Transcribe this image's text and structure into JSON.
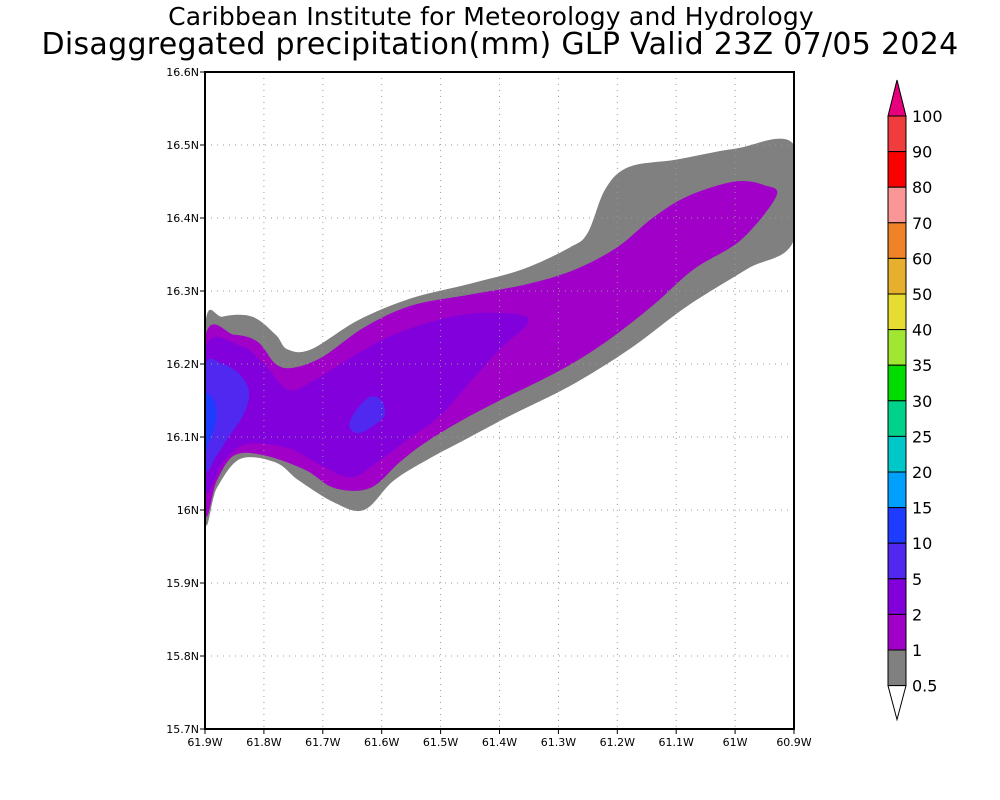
{
  "header": {
    "title": "Caribbean Institute for Meteorology and Hydrology",
    "subtitle": "Disaggregated precipitation(mm) GLP Valid 23Z 07/05 2024"
  },
  "map": {
    "projection": "lat-lon",
    "lon_range": [
      -61.9,
      -60.9
    ],
    "lat_range": [
      15.7,
      16.6
    ],
    "grid": "dotted",
    "lon_ticks": [
      {
        "value": -61.9,
        "label": "61.9W"
      },
      {
        "value": -61.8,
        "label": "61.8W"
      },
      {
        "value": -61.7,
        "label": "61.7W"
      },
      {
        "value": -61.6,
        "label": "61.6W"
      },
      {
        "value": -61.5,
        "label": "61.5W"
      },
      {
        "value": -61.4,
        "label": "61.4W"
      },
      {
        "value": -61.3,
        "label": "61.3W"
      },
      {
        "value": -61.2,
        "label": "61.2W"
      },
      {
        "value": -61.1,
        "label": "61.1W"
      },
      {
        "value": -61.0,
        "label": "61W"
      },
      {
        "value": -60.9,
        "label": "60.9W"
      }
    ],
    "lat_ticks": [
      {
        "value": 15.7,
        "label": "15.7N"
      },
      {
        "value": 15.8,
        "label": "15.8N"
      },
      {
        "value": 15.9,
        "label": "15.9N"
      },
      {
        "value": 16.0,
        "label": "16N"
      },
      {
        "value": 16.1,
        "label": "16.1N"
      },
      {
        "value": 16.2,
        "label": "16.2N"
      },
      {
        "value": 16.3,
        "label": "16.3N"
      },
      {
        "value": 16.4,
        "label": "16.4N"
      },
      {
        "value": 16.5,
        "label": "16.5N"
      },
      {
        "value": 16.6,
        "label": "16.6N"
      }
    ],
    "contours": [
      {
        "level": "0.5-1",
        "color": "#808080",
        "points": [
          [
            -61.9,
            16.25
          ],
          [
            -61.87,
            16.265
          ],
          [
            -61.82,
            16.265
          ],
          [
            -61.78,
            16.24
          ],
          [
            -61.76,
            16.22
          ],
          [
            -61.72,
            16.22
          ],
          [
            -61.64,
            16.26
          ],
          [
            -61.55,
            16.29
          ],
          [
            -61.45,
            16.31
          ],
          [
            -61.36,
            16.33
          ],
          [
            -61.28,
            16.36
          ],
          [
            -61.25,
            16.38
          ],
          [
            -61.22,
            16.44
          ],
          [
            -61.18,
            16.47
          ],
          [
            -61.1,
            16.48
          ],
          [
            -61.0,
            16.495
          ],
          [
            -60.9,
            16.5
          ],
          [
            -60.9,
            16.37
          ],
          [
            -60.98,
            16.33
          ],
          [
            -61.08,
            16.28
          ],
          [
            -61.18,
            16.22
          ],
          [
            -61.28,
            16.17
          ],
          [
            -61.38,
            16.13
          ],
          [
            -61.45,
            16.1
          ],
          [
            -61.52,
            16.07
          ],
          [
            -61.58,
            16.04
          ],
          [
            -61.63,
            16.0
          ],
          [
            -61.68,
            16.01
          ],
          [
            -61.74,
            16.04
          ],
          [
            -61.78,
            16.065
          ],
          [
            -61.84,
            16.07
          ],
          [
            -61.88,
            16.03
          ],
          [
            -61.9,
            15.99
          ]
        ]
      },
      {
        "level": "1-2",
        "color": "#a000c8",
        "points": [
          [
            -61.9,
            16.235
          ],
          [
            -61.85,
            16.24
          ],
          [
            -61.81,
            16.23
          ],
          [
            -61.78,
            16.2
          ],
          [
            -61.75,
            16.195
          ],
          [
            -61.7,
            16.21
          ],
          [
            -61.63,
            16.25
          ],
          [
            -61.55,
            16.28
          ],
          [
            -61.45,
            16.295
          ],
          [
            -61.35,
            16.31
          ],
          [
            -61.27,
            16.33
          ],
          [
            -61.2,
            16.36
          ],
          [
            -61.14,
            16.4
          ],
          [
            -61.08,
            16.43
          ],
          [
            -61.0,
            16.45
          ],
          [
            -60.95,
            16.445
          ],
          [
            -60.93,
            16.43
          ],
          [
            -60.99,
            16.37
          ],
          [
            -61.07,
            16.33
          ],
          [
            -61.14,
            16.28
          ],
          [
            -61.22,
            16.23
          ],
          [
            -61.3,
            16.19
          ],
          [
            -61.4,
            16.15
          ],
          [
            -61.47,
            16.12
          ],
          [
            -61.53,
            16.09
          ],
          [
            -61.57,
            16.065
          ],
          [
            -61.62,
            16.03
          ],
          [
            -61.68,
            16.03
          ],
          [
            -61.73,
            16.055
          ],
          [
            -61.8,
            16.075
          ],
          [
            -61.85,
            16.075
          ],
          [
            -61.88,
            16.04
          ],
          [
            -61.9,
            16.0
          ]
        ]
      },
      {
        "level": "2-5",
        "color": "#8200dc",
        "points": [
          [
            -61.9,
            16.22
          ],
          [
            -61.84,
            16.225
          ],
          [
            -61.8,
            16.2
          ],
          [
            -61.76,
            16.165
          ],
          [
            -61.72,
            16.175
          ],
          [
            -61.66,
            16.205
          ],
          [
            -61.58,
            16.24
          ],
          [
            -61.48,
            16.265
          ],
          [
            -61.4,
            16.27
          ],
          [
            -61.35,
            16.26
          ],
          [
            -61.4,
            16.22
          ],
          [
            -61.45,
            16.175
          ],
          [
            -61.5,
            16.13
          ],
          [
            -61.55,
            16.1
          ],
          [
            -61.6,
            16.07
          ],
          [
            -61.65,
            16.045
          ],
          [
            -61.7,
            16.06
          ],
          [
            -61.76,
            16.085
          ],
          [
            -61.83,
            16.09
          ],
          [
            -61.87,
            16.065
          ],
          [
            -61.9,
            16.03
          ]
        ]
      },
      {
        "level": "5-10",
        "color": "#5028f0",
        "points": [
          [
            -61.9,
            16.195
          ],
          [
            -61.87,
            16.2
          ],
          [
            -61.84,
            16.185
          ],
          [
            -61.825,
            16.16
          ],
          [
            -61.835,
            16.13
          ],
          [
            -61.86,
            16.1
          ],
          [
            -61.88,
            16.075
          ],
          [
            -61.9,
            16.06
          ]
        ]
      },
      {
        "level": "5-10",
        "color": "#5028f0",
        "points": [
          [
            -61.62,
            16.155
          ],
          [
            -61.6,
            16.15
          ],
          [
            -61.595,
            16.13
          ],
          [
            -61.615,
            16.115
          ],
          [
            -61.64,
            16.105
          ],
          [
            -61.655,
            16.115
          ],
          [
            -61.645,
            16.135
          ]
        ]
      },
      {
        "level": "10-15",
        "color": "#1e3cff",
        "points": [
          [
            -61.9,
            16.155
          ],
          [
            -61.885,
            16.15
          ],
          [
            -61.88,
            16.13
          ],
          [
            -61.885,
            16.11
          ],
          [
            -61.895,
            16.09
          ],
          [
            -61.9,
            16.08
          ]
        ]
      }
    ]
  },
  "colorbar": {
    "levels": [
      {
        "label": "0.5",
        "color": "#ffffff"
      },
      {
        "label": "1",
        "color": "#808080"
      },
      {
        "label": "2",
        "color": "#a000c8"
      },
      {
        "label": "5",
        "color": "#8200dc"
      },
      {
        "label": "10",
        "color": "#5028f0"
      },
      {
        "label": "15",
        "color": "#1e3cff"
      },
      {
        "label": "20",
        "color": "#00a0ff"
      },
      {
        "label": "25",
        "color": "#00c8c8"
      },
      {
        "label": "30",
        "color": "#00d28c"
      },
      {
        "label": "35",
        "color": "#00dc00"
      },
      {
        "label": "40",
        "color": "#a0e632"
      },
      {
        "label": "50",
        "color": "#e6dc32"
      },
      {
        "label": "60",
        "color": "#e6af2d"
      },
      {
        "label": "70",
        "color": "#f08228"
      },
      {
        "label": "80",
        "color": "#fa9696"
      },
      {
        "label": "90",
        "color": "#fa0000"
      },
      {
        "label": "100",
        "color": "#f03c3c"
      }
    ],
    "over_color": "#e6007e",
    "under_color": "#ffffff"
  }
}
